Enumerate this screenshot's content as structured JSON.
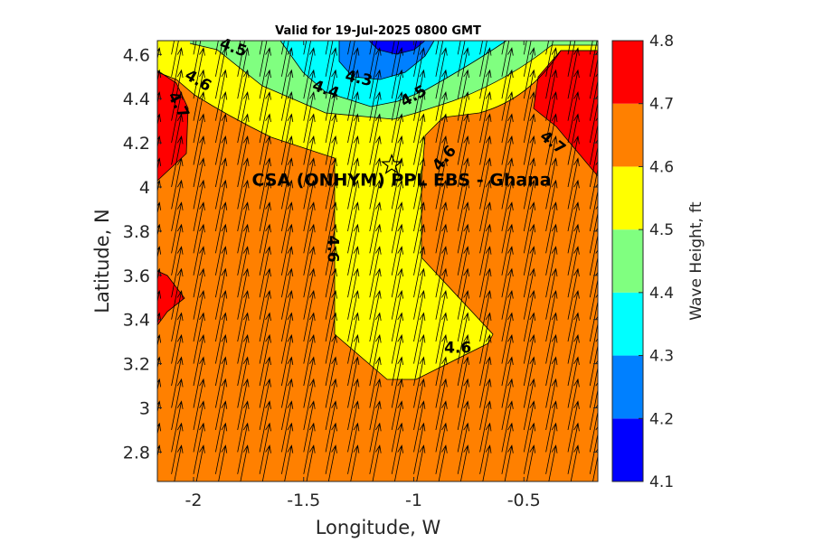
{
  "chart_data": {
    "type": "heatmap",
    "subtype": "filled-contour with quiver arrows",
    "title": "Valid for 19-Jul-2025 0800 GMT",
    "xlabel": "Longitude, W",
    "ylabel": "Latitude, N",
    "xlim": [
      -2.2,
      -0.2
    ],
    "ylim": [
      2.65,
      4.67
    ],
    "x_ticks": [
      -2,
      -1.5,
      -1,
      -0.5
    ],
    "x_tick_labels": [
      "-2",
      "-1.5",
      "-1",
      "-0.5"
    ],
    "y_ticks": [
      2.8,
      3,
      3.2,
      3.4,
      3.6,
      3.8,
      4,
      4.2,
      4.4,
      4.6
    ],
    "y_tick_labels": [
      "2.8",
      "3",
      "3.2",
      "3.4",
      "3.6",
      "3.8",
      "4",
      "4.2",
      "4.4",
      "4.6"
    ],
    "colorbar": {
      "label": "Wave Height, ft",
      "levels": [
        4.1,
        4.2,
        4.3,
        4.4,
        4.5,
        4.6,
        4.7,
        4.8
      ],
      "tick_labels": [
        "4.1",
        "4.2",
        "4.3",
        "4.4",
        "4.5",
        "4.6",
        "4.7",
        "4.8"
      ],
      "colors": [
        "#0000ff",
        "#0080ff",
        "#00ffff",
        "#80ff80",
        "#ffff00",
        "#ff8000",
        "#ff0000"
      ]
    },
    "contour_labels": [
      {
        "text": "4.5",
        "lon": -1.82,
        "lat": 4.63,
        "angle": 20
      },
      {
        "text": "4.6",
        "lon": -1.98,
        "lat": 4.48,
        "angle": 30
      },
      {
        "text": "4.7",
        "lon": -2.07,
        "lat": 4.37,
        "angle": 62
      },
      {
        "text": "4.4",
        "lon": -1.4,
        "lat": 4.44,
        "angle": 20
      },
      {
        "text": "4.3",
        "lon": -1.25,
        "lat": 4.49,
        "angle": 12
      },
      {
        "text": "4.5",
        "lon": -1.0,
        "lat": 4.41,
        "angle": -30
      },
      {
        "text": "4.6",
        "lon": -0.86,
        "lat": 4.13,
        "angle": -50
      },
      {
        "text": "4.6",
        "lon": -1.37,
        "lat": 3.72,
        "angle": 90
      },
      {
        "text": "4.6",
        "lon": -0.8,
        "lat": 3.27,
        "angle": 0
      },
      {
        "text": "4.7",
        "lon": -0.37,
        "lat": 4.2,
        "angle": 38
      }
    ],
    "site": {
      "label": "CSA (ONHYM) PPL EBS  - Ghana",
      "lon": -1.1,
      "lat": 4.1,
      "marker": "star"
    },
    "arrows": {
      "direction": "toward NNE",
      "grid_lon_step": 0.1,
      "grid_lat_step": 0.1
    },
    "grid": false
  }
}
